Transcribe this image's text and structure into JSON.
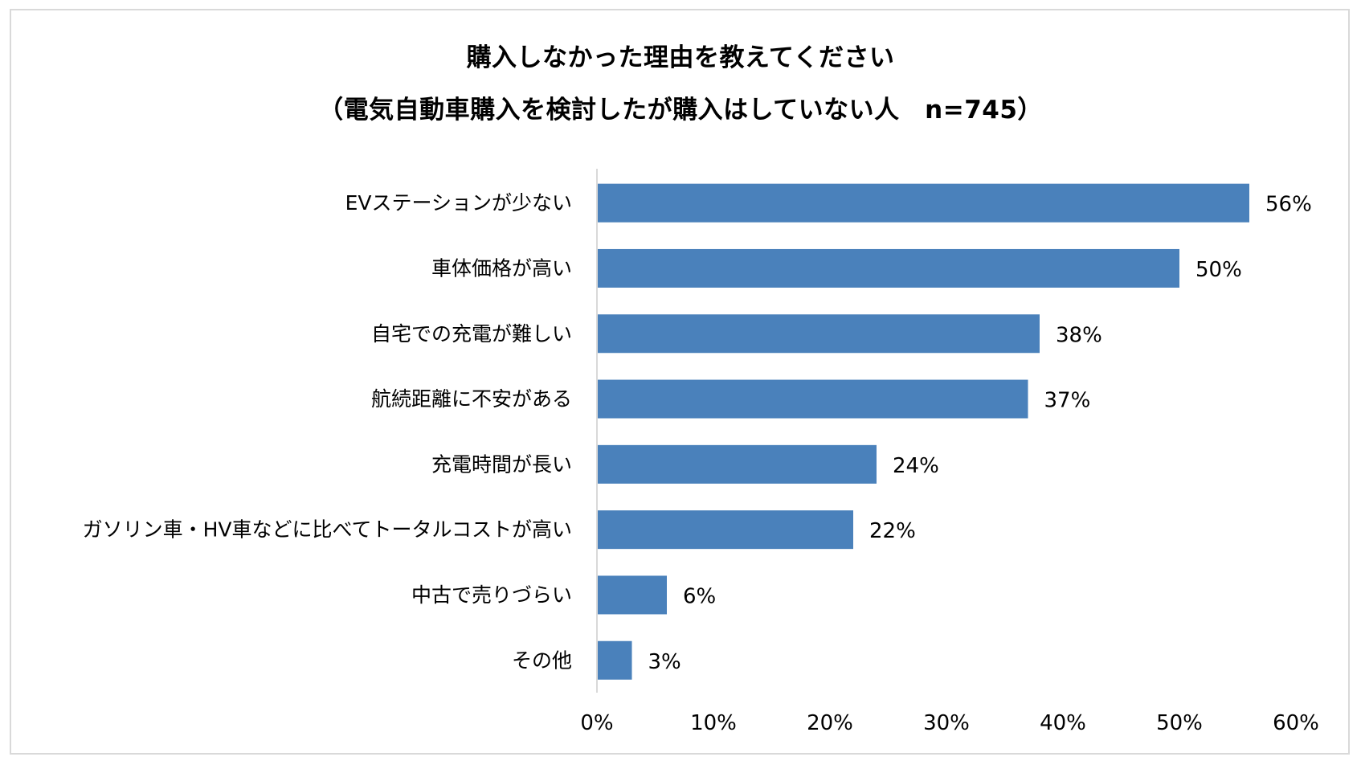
{
  "chart_data": {
    "type": "bar",
    "orientation": "horizontal",
    "title": "購入しなかった理由を教えてください",
    "subtitle": "（電気自動車購入を検討したが購入はしていない人　n=745）",
    "categories": [
      "EVステーションが少ない",
      "車体価格が高い",
      "自宅での充電が難しい",
      "航続距離に不安がある",
      "充電時間が長い",
      "ガソリン車・HV車などに比べてトータルコストが高い",
      "中古で売りづらい",
      "その他"
    ],
    "values": [
      56,
      50,
      38,
      37,
      24,
      22,
      6,
      3
    ],
    "value_labels": [
      "56%",
      "50%",
      "38%",
      "37%",
      "24%",
      "22%",
      "6%",
      "3%"
    ],
    "xlim": [
      0,
      60
    ],
    "xticks": [
      0,
      10,
      20,
      30,
      40,
      50,
      60
    ],
    "xtick_labels": [
      "0%",
      "10%",
      "20%",
      "30%",
      "40%",
      "50%",
      "60%"
    ],
    "grid": false,
    "legend": "none",
    "bar_color": "#4a81bb",
    "axis_color": "#d9d9d9"
  }
}
